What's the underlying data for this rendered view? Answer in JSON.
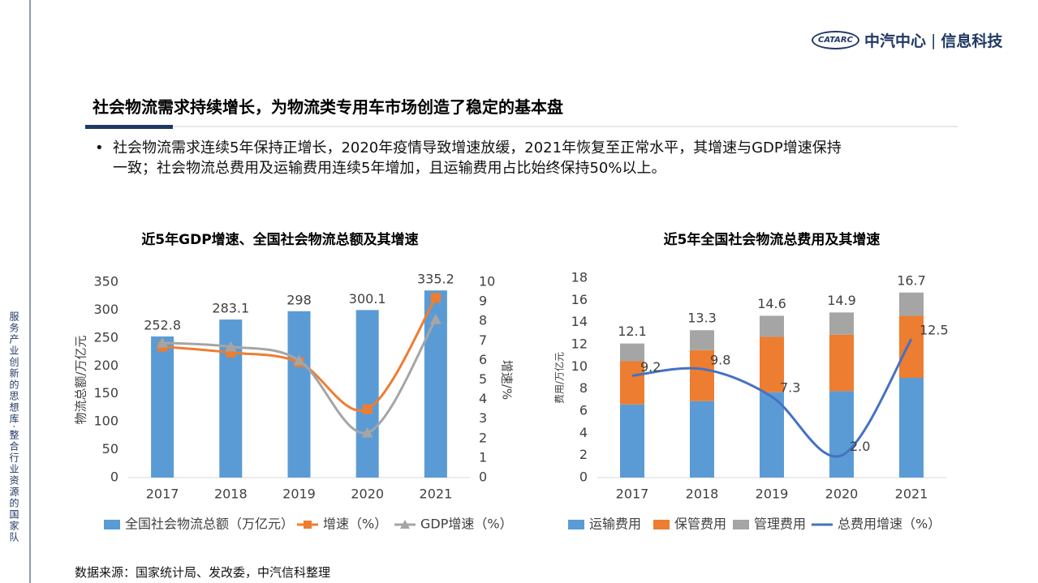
{
  "logo": {
    "mark": "CATARC",
    "org": "中汽中心",
    "sep": "|",
    "unit": "信息科技"
  },
  "sidebar": "服务产业创新的思想库·整合行业资源的国家队",
  "header": {
    "title": "社会物流需求持续增长，为物流类专用车市场创造了稳定的基本盘"
  },
  "bullet": {
    "symbol": "•",
    "lines": [
      "社会物流需求连续5年保持正增长，2020年疫情导致增速放缓，2021年恢复至正常水平，其增速与GDP增速保持",
      "一致；社会物流总费用及运输费用连续5年增加，且运输费用占比始终保持50%以上。"
    ]
  },
  "source": "数据来源：国家统计局、发改委，中汽信科整理",
  "chart_data": [
    {
      "type": "bar",
      "title": "近5年GDP增速、全国社会物流总额及其增速",
      "categories": [
        "2017",
        "2018",
        "2019",
        "2020",
        "2021"
      ],
      "ylabel": "物流总额/万亿元",
      "y2label": "增速/%",
      "ylim": [
        0,
        350
      ],
      "yticks": [
        0,
        50,
        100,
        150,
        200,
        250,
        300,
        350
      ],
      "y2lim": [
        0,
        10
      ],
      "y2ticks": [
        0,
        1,
        2,
        3,
        4,
        5,
        6,
        7,
        8,
        9,
        10
      ],
      "legend": "bottom",
      "series": [
        {
          "name": "全国社会物流总额（万亿元）",
          "color": "#5b9bd5",
          "values": [
            252.8,
            283.1,
            298,
            300.1,
            335.2
          ]
        },
        {
          "name": "增速（%）",
          "color": "#ed7d31",
          "axis": "y2",
          "kind": "line",
          "marker": "square",
          "values": [
            6.7,
            6.4,
            5.9,
            3.5,
            9.2
          ]
        },
        {
          "name": "GDP增速（%）",
          "color": "#a5a5a5",
          "axis": "y2",
          "kind": "line",
          "marker": "triangle",
          "values": [
            6.9,
            6.7,
            6.0,
            2.3,
            8.1
          ]
        }
      ]
    },
    {
      "type": "stacked-bar",
      "title": "近5年全国社会物流总费用及其增速",
      "categories": [
        "2017",
        "2018",
        "2019",
        "2020",
        "2021"
      ],
      "ylabel": "费用/万亿元",
      "ylim": [
        0,
        18
      ],
      "yticks": [
        0,
        2,
        4,
        6,
        8,
        10,
        12,
        14,
        16,
        18
      ],
      "legend": "bottom",
      "totals": [
        12.1,
        13.3,
        14.6,
        14.9,
        16.7
      ],
      "series": [
        {
          "name": "运输费用",
          "color": "#5b9bd5",
          "values": [
            6.6,
            6.9,
            7.7,
            7.8,
            9.0
          ]
        },
        {
          "name": "保管费用",
          "color": "#ed7d31",
          "values": [
            3.9,
            4.6,
            5.0,
            5.1,
            5.6
          ]
        },
        {
          "name": "管理费用",
          "color": "#a5a5a5",
          "values": [
            1.6,
            1.8,
            1.9,
            2.0,
            2.1
          ]
        },
        {
          "name": "总费用增速（%）",
          "color": "#4472c4",
          "kind": "line",
          "values": [
            9.2,
            9.8,
            7.3,
            2.0,
            12.5
          ],
          "value_labels": [
            "9.2",
            "9.8",
            "7.3",
            "2.0",
            "12.5"
          ]
        }
      ]
    }
  ]
}
